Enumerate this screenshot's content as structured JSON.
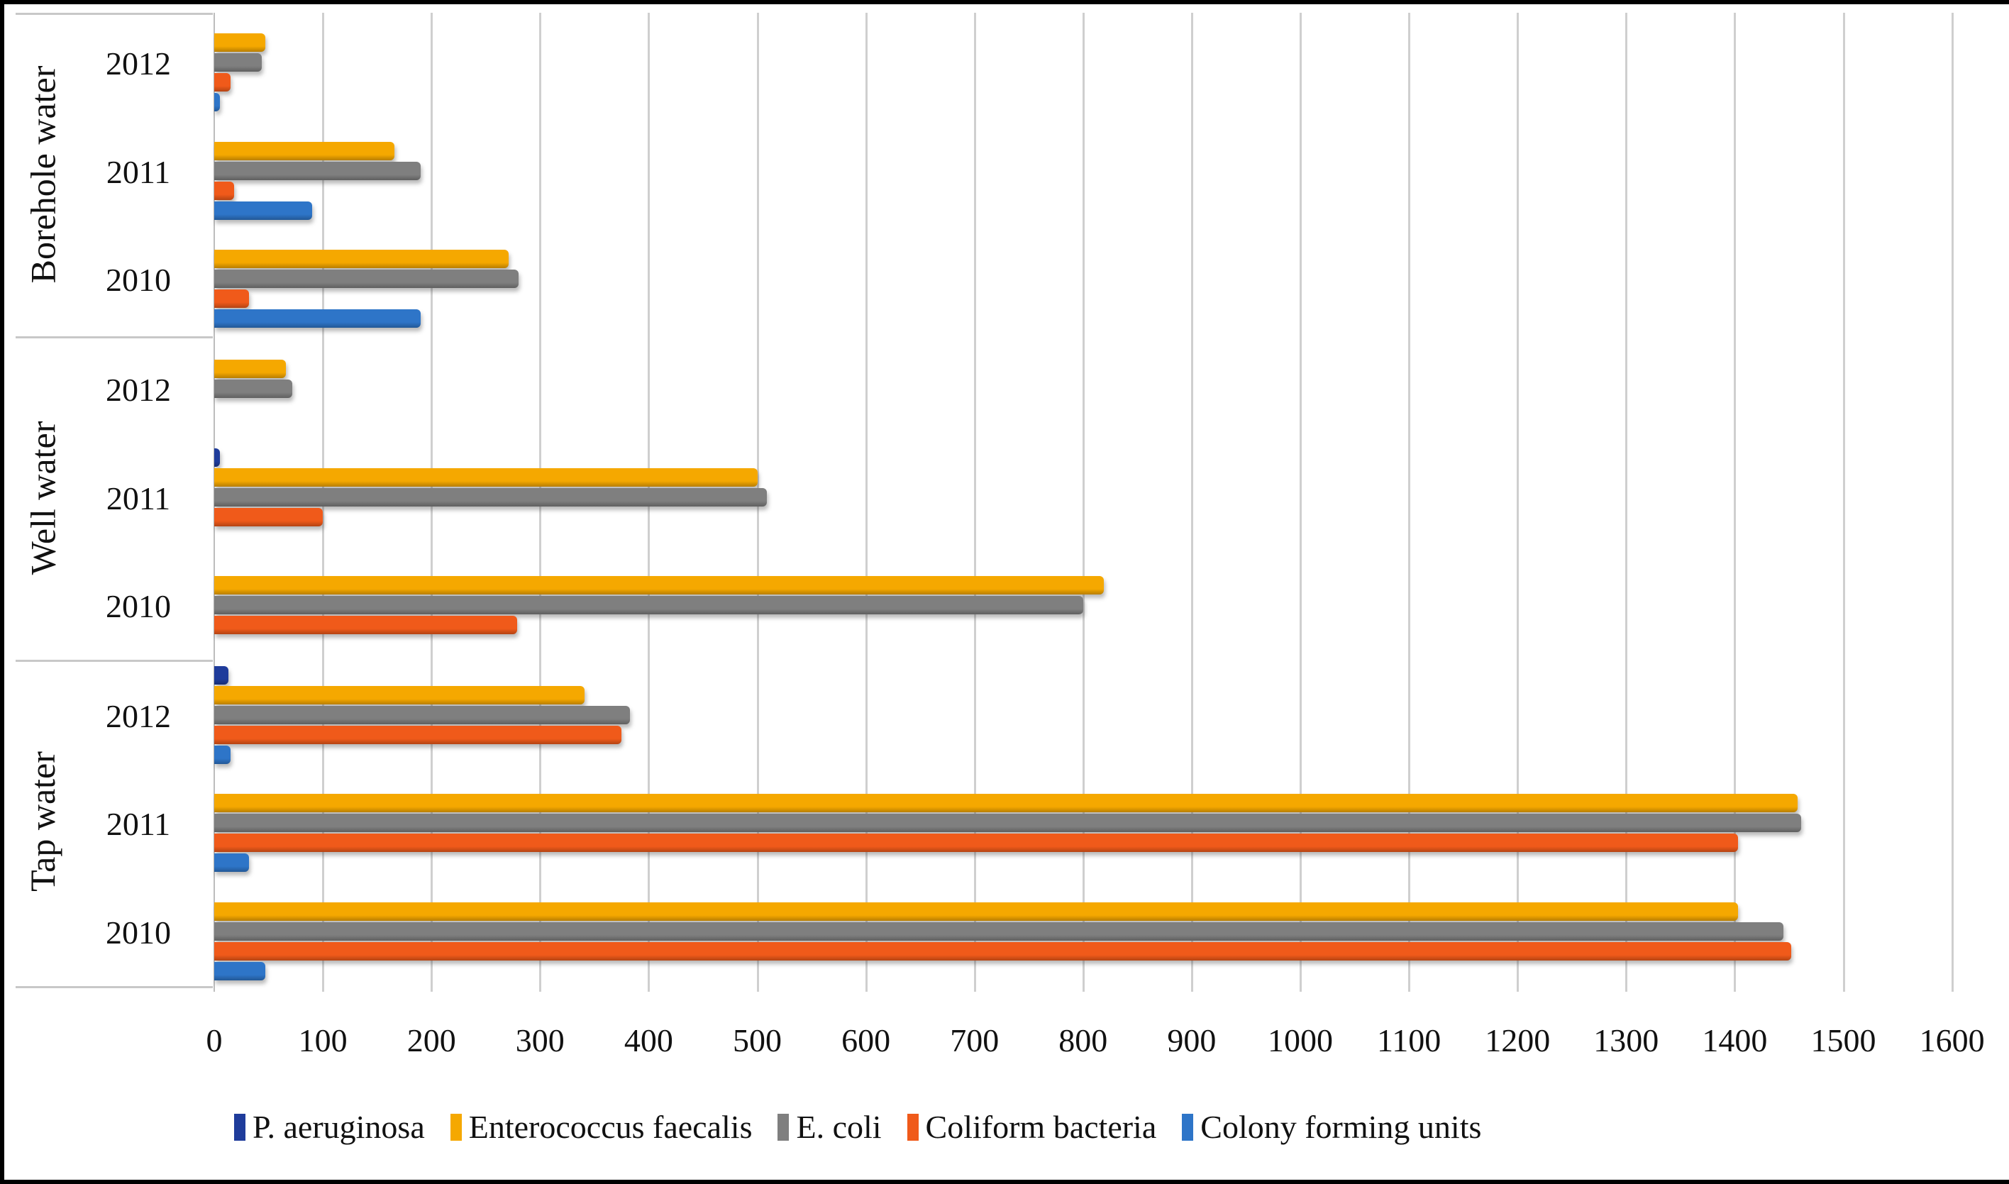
{
  "chart_data": {
    "type": "bar",
    "orientation": "horizontal",
    "title": "",
    "xlabel": "",
    "ylabel": "",
    "xlim": [
      0,
      1600
    ],
    "x_ticks": [
      "0",
      "100",
      "200",
      "300",
      "400",
      "500",
      "600",
      "700",
      "800",
      "900",
      "1000",
      "1100",
      "1200",
      "1300",
      "1400",
      "1500",
      "1600"
    ],
    "grid": true,
    "legend_position": "bottom",
    "groups": [
      {
        "name": "Borehole  water",
        "categories": [
          "2012",
          "2011",
          "2010"
        ]
      },
      {
        "name": "Well water",
        "categories": [
          "2012",
          "2011",
          "2010"
        ]
      },
      {
        "name": "Tap water",
        "categories": [
          "2012",
          "2011",
          "2010"
        ]
      }
    ],
    "categories": [
      "Borehole water 2012",
      "Borehole water 2011",
      "Borehole water 2010",
      "Well water 2012",
      "Well water 2011",
      "Well water 2010",
      "Tap water 2012",
      "Tap water 2011",
      "Tap water 2010"
    ],
    "series": [
      {
        "name": "P. aeruginosa",
        "color": "#1f3c9b",
        "values": [
          0,
          0,
          0,
          0,
          5,
          0,
          13,
          0,
          0
        ]
      },
      {
        "name": "Enterococcus faecalis",
        "color": "#f5a800",
        "values": [
          47,
          166,
          271,
          66,
          500,
          819,
          341,
          1458,
          1403
        ]
      },
      {
        "name": "E. coli",
        "color": "#7f7f7f",
        "values": [
          44,
          190,
          280,
          72,
          509,
          800,
          383,
          1461,
          1445
        ]
      },
      {
        "name": "Coliform bacteria",
        "color": "#f05a1a",
        "values": [
          15,
          18,
          32,
          0,
          100,
          279,
          375,
          1403,
          1452
        ]
      },
      {
        "name": "Colony forming units",
        "color": "#2e75c8",
        "values": [
          5,
          90,
          190,
          0,
          0,
          0,
          15,
          32,
          47
        ]
      }
    ]
  },
  "legend": [
    {
      "label": "P. aeruginosa",
      "color": "#1f3c9b"
    },
    {
      "label": "Enterococcus faecalis",
      "color": "#f5a800"
    },
    {
      "label": "E. coli",
      "color": "#7f7f7f"
    },
    {
      "label": "Coliform bacteria",
      "color": "#f05a1a"
    },
    {
      "label": "Colony forming units",
      "color": "#2e75c8"
    }
  ],
  "groups": [
    {
      "label": "Borehole  water",
      "years": [
        "2012",
        "2011",
        "2010"
      ]
    },
    {
      "label": "Well water",
      "years": [
        "2012",
        "2011",
        "2010"
      ]
    },
    {
      "label": "Tap water",
      "years": [
        "2012",
        "2011",
        "2010"
      ]
    }
  ]
}
